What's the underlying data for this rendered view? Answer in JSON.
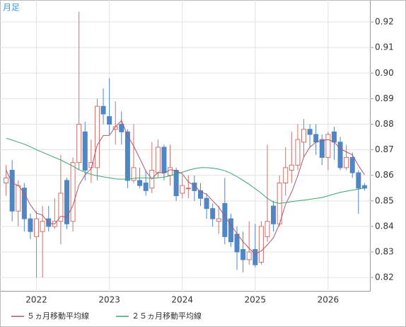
{
  "chart_data": {
    "type": "candlestick",
    "label": "月足",
    "xlim": [
      -1,
      60
    ],
    "xticks": [
      {
        "value": 5,
        "label": "2022"
      },
      {
        "value": 17,
        "label": "2023"
      },
      {
        "value": 29,
        "label": "2024"
      },
      {
        "value": 41,
        "label": "2025"
      },
      {
        "value": 53,
        "label": "2026"
      }
    ],
    "ylim": [
      0.8145,
      0.9286
    ],
    "yticks": [
      0.82,
      0.83,
      0.84,
      0.85,
      0.86,
      0.87,
      0.88,
      0.89,
      {
        "value": 0.9,
        "label": "0.90"
      },
      0.91,
      0.92
    ],
    "grid": true,
    "up_color": "#d0706a",
    "down_color": "#4f86c6",
    "open": [
      0.857,
      0.862,
      0.846,
      0.855,
      0.843,
      0.836,
      0.838,
      0.843,
      0.84,
      0.842,
      0.858,
      0.842,
      0.865,
      0.877,
      0.863,
      0.863,
      0.887,
      0.883,
      0.878,
      0.88,
      0.877,
      0.858,
      0.858,
      0.857,
      0.855,
      0.861,
      0.871,
      0.86,
      0.862,
      0.853,
      0.855,
      0.857,
      0.854,
      0.851,
      0.847,
      0.842,
      0.849,
      0.843,
      0.837,
      0.831,
      0.827,
      0.831,
      0.826,
      0.836,
      0.848,
      0.841,
      0.857,
      0.862,
      0.864,
      0.873,
      0.878,
      0.876,
      0.874,
      0.867,
      0.877,
      0.873,
      0.863,
      0.867,
      0.861,
      0.856
    ],
    "high": [
      0.864,
      0.866,
      0.858,
      0.857,
      0.845,
      0.846,
      0.848,
      0.848,
      0.851,
      0.868,
      0.859,
      0.867,
      0.924,
      0.881,
      0.874,
      0.89,
      0.894,
      0.898,
      0.889,
      0.885,
      0.878,
      0.88,
      0.863,
      0.862,
      0.873,
      0.874,
      0.872,
      0.872,
      0.863,
      0.86,
      0.86,
      0.86,
      0.857,
      0.853,
      0.849,
      0.848,
      0.859,
      0.845,
      0.84,
      0.838,
      0.842,
      0.841,
      0.842,
      0.872,
      0.85,
      0.86,
      0.871,
      0.877,
      0.88,
      0.882,
      0.88,
      0.88,
      0.876,
      0.877,
      0.879,
      0.875,
      0.872,
      0.869,
      0.862,
      0.857
    ],
    "low": [
      0.852,
      0.842,
      0.84,
      0.838,
      0.835,
      0.82,
      0.82,
      0.838,
      0.839,
      0.833,
      0.839,
      0.838,
      0.862,
      0.858,
      0.857,
      0.858,
      0.88,
      0.876,
      0.872,
      0.872,
      0.855,
      0.857,
      0.855,
      0.852,
      0.853,
      0.859,
      0.858,
      0.856,
      0.85,
      0.851,
      0.851,
      0.85,
      0.848,
      0.843,
      0.84,
      0.837,
      0.833,
      0.832,
      0.823,
      0.822,
      0.825,
      0.824,
      0.825,
      0.834,
      0.838,
      0.84,
      0.852,
      0.857,
      0.862,
      0.867,
      0.871,
      0.868,
      0.864,
      0.862,
      0.866,
      0.862,
      0.862,
      0.859,
      0.845,
      0.854
    ],
    "close": [
      0.859,
      0.846,
      0.856,
      0.843,
      0.838,
      0.843,
      0.842,
      0.84,
      0.842,
      0.853,
      0.841,
      0.865,
      0.88,
      0.862,
      0.865,
      0.887,
      0.884,
      0.88,
      0.879,
      0.877,
      0.858,
      0.863,
      0.856,
      0.854,
      0.862,
      0.871,
      0.861,
      0.863,
      0.852,
      0.856,
      0.855,
      0.854,
      0.851,
      0.847,
      0.843,
      0.843,
      0.836,
      0.834,
      0.83,
      0.827,
      0.83,
      0.825,
      0.84,
      0.842,
      0.841,
      0.857,
      0.863,
      0.864,
      0.874,
      0.878,
      0.876,
      0.873,
      0.867,
      0.876,
      0.873,
      0.863,
      0.867,
      0.861,
      0.855,
      0.855
    ],
    "series": [
      {
        "name": "５ヵ月移動平均線",
        "color": "#b5546a",
        "values": [
          0.862,
          0.857,
          0.856,
          0.853,
          0.8484,
          0.8452,
          0.8444,
          0.8412,
          0.841,
          0.844,
          0.8436,
          0.8482,
          0.8562,
          0.8602,
          0.8626,
          0.8718,
          0.8756,
          0.8756,
          0.879,
          0.8814,
          0.8756,
          0.8714,
          0.8666,
          0.8616,
          0.8586,
          0.8612,
          0.8608,
          0.8622,
          0.8618,
          0.8606,
          0.8574,
          0.856,
          0.8536,
          0.8526,
          0.85,
          0.8476,
          0.844,
          0.8406,
          0.8372,
          0.834,
          0.8314,
          0.8292,
          0.8304,
          0.8328,
          0.8356,
          0.841,
          0.8486,
          0.8534,
          0.8598,
          0.8672,
          0.871,
          0.873,
          0.8736,
          0.874,
          0.873,
          0.8704,
          0.8692,
          0.868,
          0.8638,
          0.8602
        ]
      },
      {
        "name": "２５ヵ月移動平均線",
        "color": "#3aa56e",
        "values": [
          0.8745,
          0.8738,
          0.873,
          0.8722,
          0.8712,
          0.87,
          0.869,
          0.868,
          0.867,
          0.866,
          0.8648,
          0.8636,
          0.8622,
          0.8612,
          0.8604,
          0.8598,
          0.8594,
          0.859,
          0.8586,
          0.8585,
          0.8585,
          0.8588,
          0.859,
          0.859,
          0.8588,
          0.859,
          0.8593,
          0.8598,
          0.8605,
          0.8612,
          0.862,
          0.8626,
          0.863,
          0.863,
          0.8628,
          0.8624,
          0.8618,
          0.8608,
          0.8595,
          0.858,
          0.8565,
          0.8548,
          0.853,
          0.851,
          0.8495,
          0.849,
          0.8493,
          0.8497,
          0.85,
          0.8503,
          0.8506,
          0.851,
          0.8513,
          0.852,
          0.8527,
          0.8533,
          0.8538,
          0.8542,
          0.8546,
          0.855
        ]
      }
    ]
  }
}
